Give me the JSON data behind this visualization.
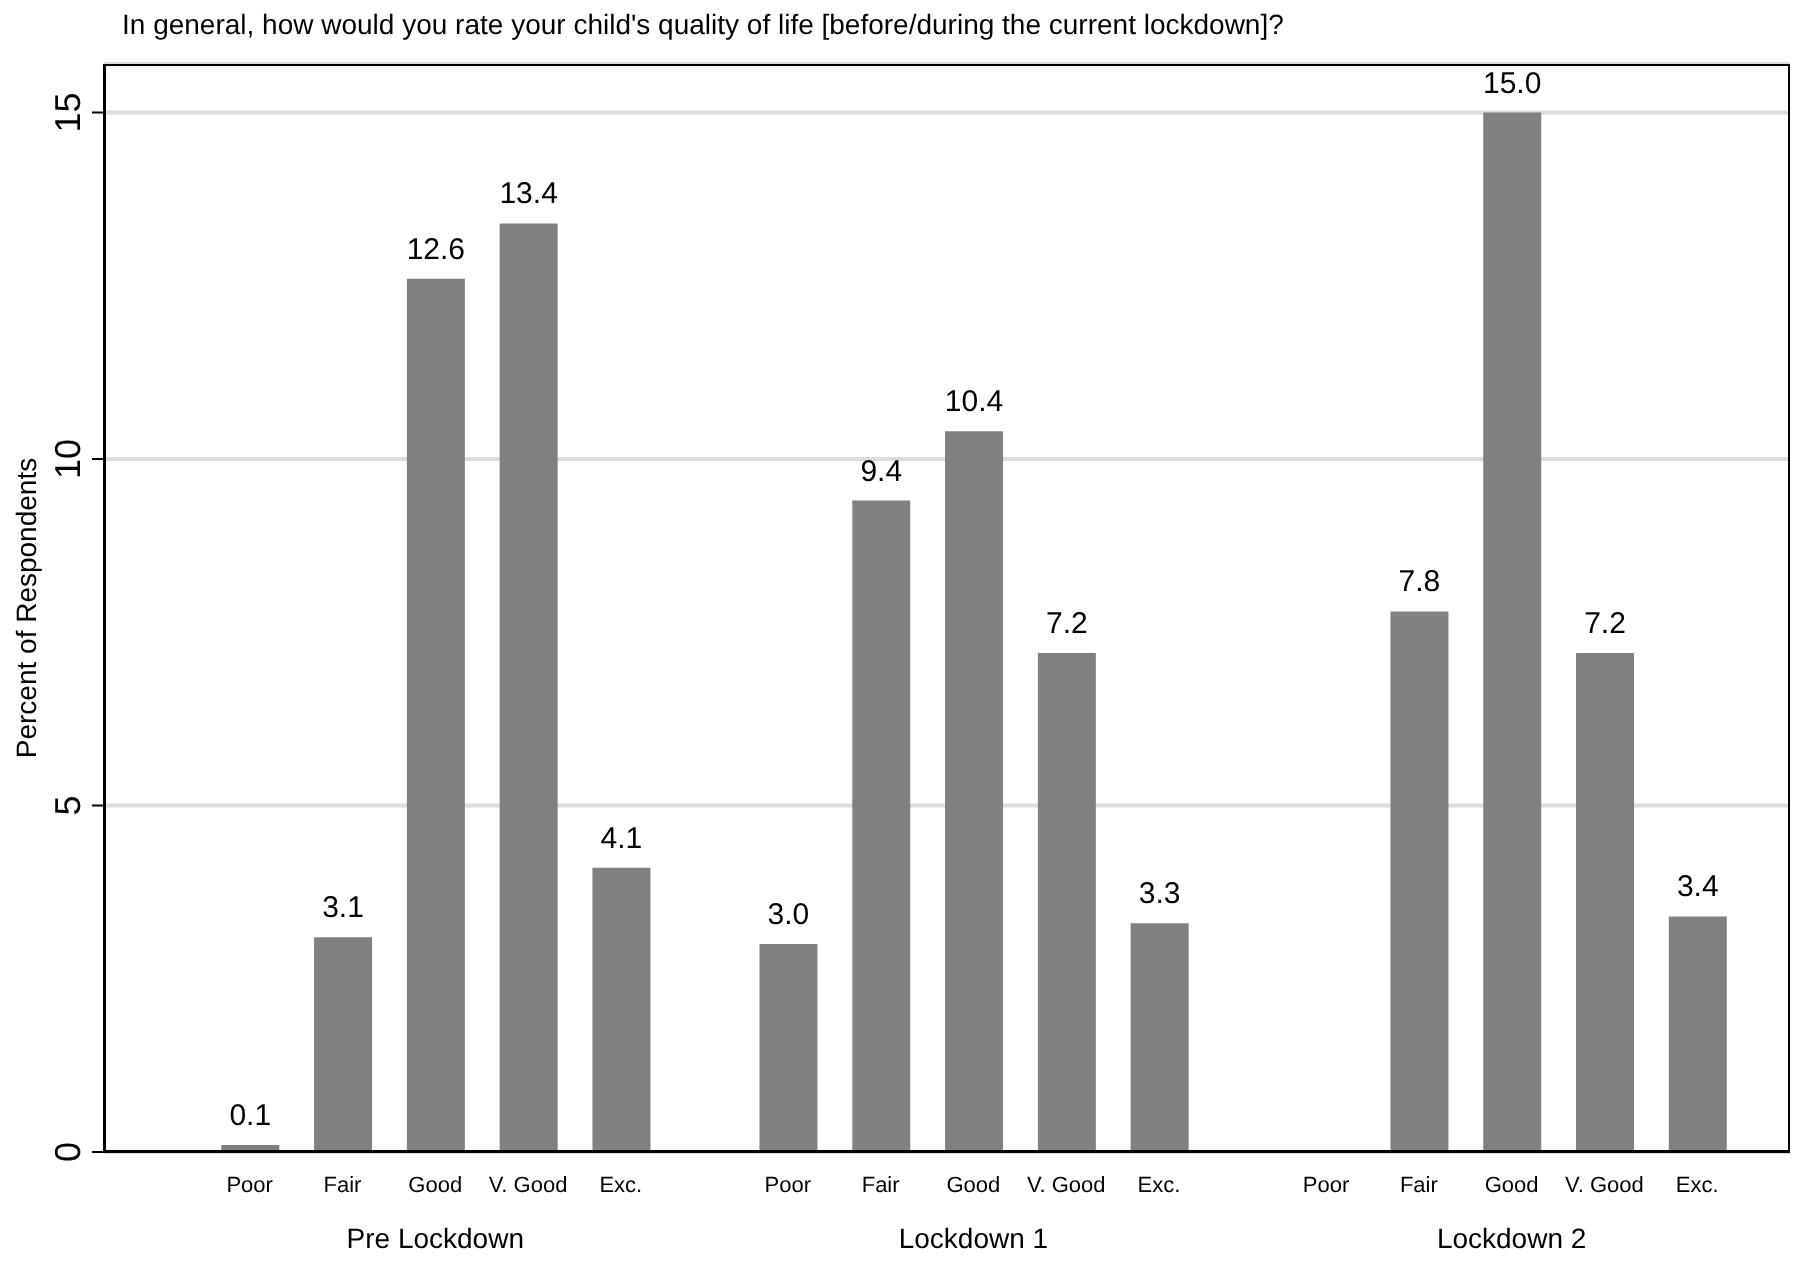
{
  "chart_data": {
    "type": "bar",
    "title": "In general, how would you rate your child's quality of life [before/during the current lockdown]?",
    "ylabel": "Percent of Respondents",
    "categories": [
      "Poor",
      "Fair",
      "Good",
      "V. Good",
      "Exc.",
      "Poor",
      "Fair",
      "Good",
      "V. Good",
      "Exc.",
      "Poor",
      "Fair",
      "Good",
      "V. Good",
      "Exc."
    ],
    "values": [
      0.1,
      3.1,
      12.6,
      13.4,
      4.1,
      3.0,
      9.4,
      10.4,
      7.2,
      3.3,
      null,
      7.8,
      15.0,
      7.2,
      3.4
    ],
    "value_labels": [
      "0.1",
      "3.1",
      "12.6",
      "13.4",
      "4.1",
      "3.0",
      "9.4",
      "10.4",
      "7.2",
      "3.3",
      null,
      "7.8",
      "15.0",
      "7.2",
      "3.4"
    ],
    "color": "#808080",
    "annotations": [
      "Pre Lockdown",
      "Lockdown 1",
      "Lockdown 2"
    ],
    "ylim": [
      0,
      15.7
    ],
    "yticks": [
      0,
      5,
      10,
      15
    ],
    "grid": "y"
  }
}
